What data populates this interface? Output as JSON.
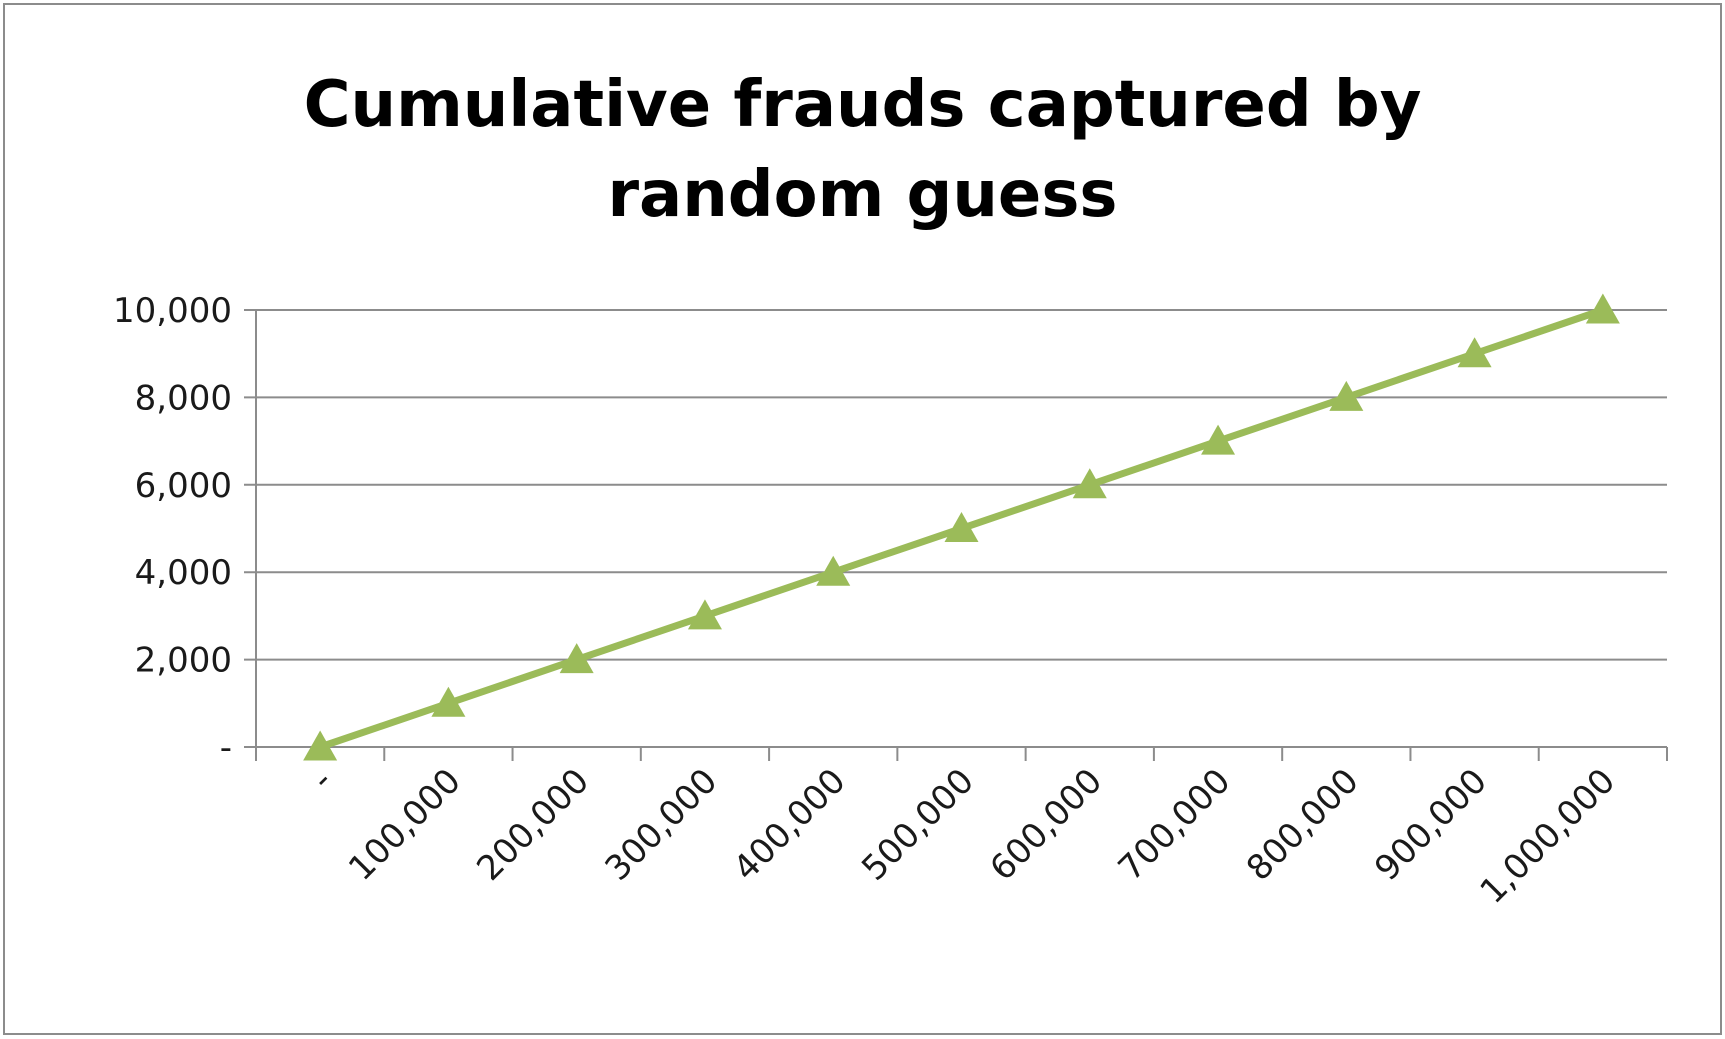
{
  "chart_data": {
    "type": "line",
    "title_lines": [
      "Cumulative frauds captured by",
      "random guess"
    ],
    "xlabel": "",
    "ylabel": "",
    "x_categories": [
      "-",
      "100,000",
      "200,000",
      "300,000",
      "400,000",
      "500,000",
      "600,000",
      "700,000",
      "800,000",
      "900,000",
      "1,000,000"
    ],
    "y_tick_labels": [
      "-",
      "2,000",
      "4,000",
      "6,000",
      "8,000",
      "10,000"
    ],
    "y_ticks": [
      0,
      2000,
      4000,
      6000,
      8000,
      10000
    ],
    "ylim": [
      0,
      10000
    ],
    "grid": true,
    "legend": "none",
    "series": [
      {
        "values": [
          0,
          1000,
          2000,
          3000,
          4000,
          5000,
          6000,
          7000,
          8000,
          9000,
          10000
        ],
        "color": "#9bbb59",
        "marker": "triangle"
      }
    ],
    "gridline_color": "#8c8c8c",
    "axis_color": "#8c8c8c"
  }
}
